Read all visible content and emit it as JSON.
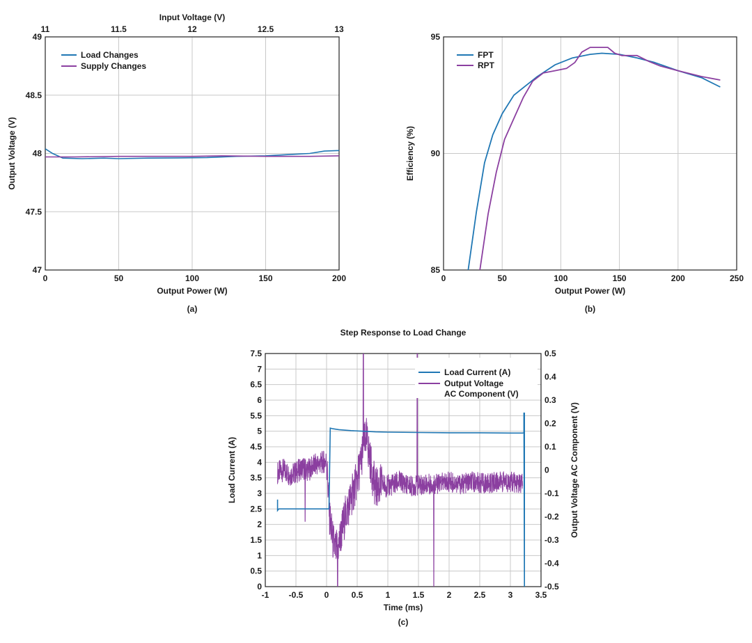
{
  "colors": {
    "blue": "#1f77b4",
    "purple": "#8b3fa0"
  },
  "chart_data": [
    {
      "id": "a",
      "type": "line",
      "panel_label": "(a)",
      "title": "",
      "xlabel": "Output Power (W)",
      "ylabel": "Output Voltage (V)",
      "x2label": "Input Voltage (V)",
      "xlim": [
        0,
        200
      ],
      "ylim": [
        47,
        49
      ],
      "x2lim": [
        11,
        13
      ],
      "xticks": [
        "0",
        "50",
        "100",
        "150",
        "200"
      ],
      "yticks": [
        "47",
        "47.5",
        "48",
        "48.5",
        "49"
      ],
      "x2ticks": [
        "11",
        "11.5",
        "12",
        "12.5",
        "13"
      ],
      "legend": [
        "Load Changes",
        "Supply Changes"
      ],
      "series": [
        {
          "name": "Load Changes",
          "color": "blue",
          "x": [
            0,
            5,
            12,
            25,
            40,
            50,
            70,
            90,
            110,
            130,
            150,
            165,
            180,
            190,
            200
          ],
          "y": [
            48.04,
            48.0,
            47.96,
            47.955,
            47.96,
            47.955,
            47.96,
            47.962,
            47.965,
            47.975,
            47.98,
            47.99,
            48.0,
            48.02,
            48.025
          ]
        },
        {
          "name": "Supply Changes",
          "color": "purple",
          "xaxis": "x2",
          "x": [
            11,
            11.2,
            11.5,
            11.8,
            12.0,
            12.2,
            12.5,
            12.8,
            13.0
          ],
          "y": [
            47.97,
            47.97,
            47.975,
            47.975,
            47.975,
            47.98,
            47.975,
            47.975,
            47.98
          ]
        }
      ]
    },
    {
      "id": "b",
      "type": "line",
      "panel_label": "(b)",
      "title": "",
      "xlabel": "Output Power (W)",
      "ylabel": "Efficiency (%)",
      "xlim": [
        0,
        250
      ],
      "ylim": [
        85,
        95
      ],
      "xticks": [
        "0",
        "50",
        "100",
        "150",
        "200",
        "250"
      ],
      "yticks": [
        "85",
        "90",
        "95"
      ],
      "legend": [
        "FPT",
        "RPT"
      ],
      "series": [
        {
          "name": "FPT",
          "color": "blue",
          "x": [
            21,
            28,
            35,
            42,
            50,
            60,
            70,
            80,
            95,
            110,
            125,
            135,
            150,
            165,
            180,
            200,
            220,
            236
          ],
          "y": [
            85.0,
            87.5,
            89.6,
            90.8,
            91.7,
            92.5,
            92.9,
            93.3,
            93.8,
            94.1,
            94.25,
            94.3,
            94.25,
            94.1,
            93.9,
            93.55,
            93.25,
            92.85
          ]
        },
        {
          "name": "RPT",
          "color": "purple",
          "x": [
            31,
            38,
            45,
            52,
            60,
            68,
            76,
            85,
            95,
            105,
            112,
            118,
            125,
            140,
            146,
            152,
            165,
            175,
            185,
            200,
            220,
            236
          ],
          "y": [
            85.0,
            87.4,
            89.2,
            90.6,
            91.5,
            92.4,
            93.1,
            93.45,
            93.55,
            93.65,
            93.9,
            94.35,
            94.55,
            94.55,
            94.3,
            94.2,
            94.2,
            93.95,
            93.75,
            93.55,
            93.3,
            93.15
          ]
        }
      ]
    },
    {
      "id": "c",
      "type": "line",
      "panel_label": "(c)",
      "title": "Step Response to Load Change",
      "xlabel": "Time (ms)",
      "ylabel": "Load Current (A)",
      "y2label": "Output Voltage AC Component (V)",
      "xlim": [
        -1,
        3.5
      ],
      "ylim": [
        0,
        7.5
      ],
      "y2lim": [
        -0.5,
        0.5
      ],
      "xticks": [
        "-1",
        "-0.5",
        "0",
        "0.5",
        "1",
        "1.5",
        "2",
        "2.5",
        "3",
        "3.5"
      ],
      "yticks": [
        "0",
        "0.5",
        "1",
        "1.5",
        "2",
        "2.5",
        "3",
        "3.5",
        "4",
        "4.5",
        "5",
        "5.5",
        "6",
        "6.5",
        "7",
        "7.5"
      ],
      "y2ticks": [
        "-0.5",
        "-0.4",
        "-0.3",
        "-0.2",
        "-0.1",
        "0",
        "0.1",
        "0.2",
        "0.3",
        "0.4",
        "0.5"
      ],
      "legend": [
        "Load Current (A)",
        "Output Voltage",
        "AC Component (V)"
      ],
      "series": [
        {
          "name": "Load Current (A)",
          "color": "blue",
          "axis": "y",
          "x": [
            -0.8,
            -0.8,
            -0.78,
            -0.6,
            -0.4,
            -0.2,
            0.0,
            0.04,
            0.06,
            0.1,
            0.2,
            0.4,
            0.6,
            0.8,
            1.0,
            1.5,
            2.0,
            2.5,
            3.0,
            3.2,
            3.22,
            3.22,
            3.23,
            3.23
          ],
          "y": [
            2.8,
            2.45,
            2.5,
            2.5,
            2.5,
            2.5,
            2.5,
            2.5,
            5.1,
            5.08,
            5.05,
            5.02,
            5.0,
            4.98,
            4.97,
            4.96,
            4.95,
            4.95,
            4.94,
            4.94,
            4.95,
            5.6,
            0,
            5.6
          ]
        },
        {
          "name": "Output Voltage AC Component (V)",
          "color": "purple",
          "axis": "y2",
          "x": [
            -0.8,
            -0.7,
            -0.6,
            -0.5,
            -0.4,
            -0.3,
            -0.2,
            -0.1,
            0.0,
            0.05,
            0.1,
            0.15,
            0.2,
            0.25,
            0.3,
            0.4,
            0.5,
            0.55,
            0.6,
            0.65,
            0.7,
            0.75,
            0.8,
            0.9,
            1.0,
            1.2,
            1.4,
            1.6,
            1.8,
            2.0,
            2.2,
            2.4,
            2.6,
            2.8,
            3.0,
            3.2
          ],
          "y": [
            -0.01,
            0.0,
            -0.02,
            -0.01,
            0.01,
            0.0,
            0.02,
            0.03,
            0.04,
            -0.2,
            -0.3,
            -0.35,
            -0.32,
            -0.26,
            -0.2,
            -0.12,
            -0.04,
            0.02,
            0.1,
            0.14,
            0.06,
            -0.02,
            -0.08,
            -0.06,
            -0.07,
            -0.05,
            -0.07,
            -0.06,
            -0.06,
            -0.05,
            -0.06,
            -0.05,
            -0.06,
            -0.05,
            -0.05,
            -0.06
          ]
        }
      ]
    }
  ]
}
